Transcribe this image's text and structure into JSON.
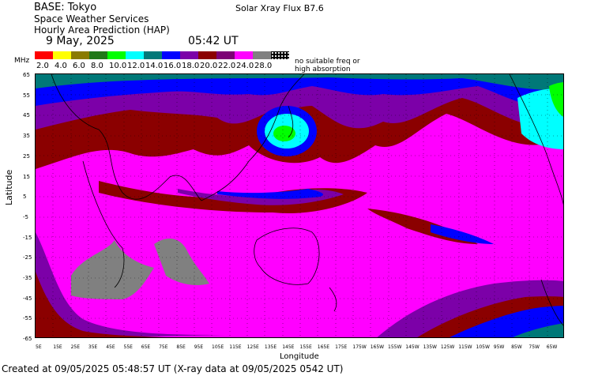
{
  "header": {
    "base": "BASE: Tokyo",
    "service": "Space Weather Services",
    "product": "Hourly Area Prediction (HAP)",
    "date": "9 May, 2025",
    "time": "05:42 UT",
    "xray_flux": "Solar Xray Flux B7.6"
  },
  "legend": {
    "unit": "MHz",
    "labels": [
      "2.0",
      "4.0",
      "6.0",
      "8.0",
      "10.0",
      "12.0",
      "14.0",
      "16.0",
      "18.0",
      "20.0",
      "22.0",
      "24.0",
      "28.0"
    ],
    "colors": [
      "#ff0000",
      "#ffff00",
      "#8a7b00",
      "#207818",
      "#00ff00",
      "#00ffff",
      "#007878",
      "#0000ff",
      "#7c00a8",
      "#8b0000",
      "#7d0075",
      "#ff00ff",
      "#808080",
      "#000000"
    ],
    "no_suitable_line1": "no suitable freq or",
    "no_suitable_line2": "high absorption"
  },
  "axes": {
    "ylabel": "Latitude",
    "xlabel": "Longitude",
    "lat_ticks": [
      "65",
      "55",
      "45",
      "35",
      "25",
      "15",
      "5",
      "-5",
      "-15",
      "-25",
      "-35",
      "-45",
      "-55",
      "-65"
    ],
    "lon_ticks": [
      "5E",
      "15E",
      "25E",
      "35E",
      "45E",
      "55E",
      "65E",
      "75E",
      "85E",
      "95E",
      "105E",
      "115E",
      "125E",
      "135E",
      "145E",
      "155E",
      "165E",
      "175E",
      "175W",
      "165W",
      "155W",
      "145W",
      "135W",
      "125W",
      "115W",
      "105W",
      "95W",
      "85W",
      "75W",
      "65W"
    ]
  },
  "footer": "Created at 09/05/2025 05:48:57 UT (X-ray data at 09/05/2025 0542 UT)"
}
